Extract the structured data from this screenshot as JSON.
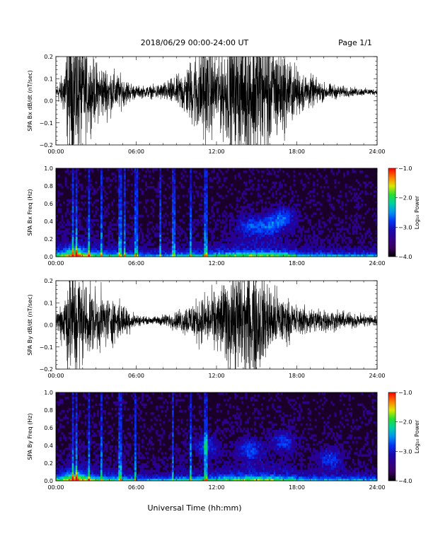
{
  "header": {
    "title": "2018/06/29  00:00-24:00 UT",
    "page": "Page 1/1"
  },
  "footer": {
    "xlabel": "Universal Time (hh:mm)"
  },
  "chart_data": [
    {
      "type": "line",
      "ylabel": "SPA Bx dB/dt (nT/sec)",
      "xlim": [
        0,
        24
      ],
      "ylim": [
        -0.2,
        0.2
      ],
      "yticks": [
        "0.2",
        "0.1",
        "0.0",
        "−0.1",
        "−0.2"
      ],
      "xticks": [
        "00:00",
        "06:00",
        "12:00",
        "18:00",
        "24:00"
      ],
      "baseline": 0.04,
      "activity": [
        {
          "t": 0.0,
          "amp": 0.02
        },
        {
          "t": 0.5,
          "amp": 0.06
        },
        {
          "t": 1.0,
          "amp": 0.22
        },
        {
          "t": 1.5,
          "amp": 0.25
        },
        {
          "t": 2.0,
          "amp": 0.18
        },
        {
          "t": 2.5,
          "amp": 0.12
        },
        {
          "t": 3.0,
          "amp": 0.1
        },
        {
          "t": 4.0,
          "amp": 0.08
        },
        {
          "t": 5.0,
          "amp": 0.05
        },
        {
          "t": 6.0,
          "amp": 0.02
        },
        {
          "t": 7.0,
          "amp": 0.02
        },
        {
          "t": 8.0,
          "amp": 0.03
        },
        {
          "t": 9.0,
          "amp": 0.05
        },
        {
          "t": 10.0,
          "amp": 0.1
        },
        {
          "t": 11.0,
          "amp": 0.18
        },
        {
          "t": 12.0,
          "amp": 0.12
        },
        {
          "t": 13.0,
          "amp": 0.18
        },
        {
          "t": 14.0,
          "amp": 0.22
        },
        {
          "t": 15.0,
          "amp": 0.25
        },
        {
          "t": 16.0,
          "amp": 0.2
        },
        {
          "t": 17.0,
          "amp": 0.14
        },
        {
          "t": 18.0,
          "amp": 0.08
        },
        {
          "t": 20.0,
          "amp": 0.03
        },
        {
          "t": 22.0,
          "amp": 0.015
        },
        {
          "t": 24.0,
          "amp": 0.01
        }
      ]
    },
    {
      "type": "heatmap",
      "ylabel": "SPA Bx Freq (Hz)",
      "xlim": [
        0,
        24
      ],
      "ylim": [
        0.0,
        1.0
      ],
      "yticks": [
        "1.0",
        "0.8",
        "0.6",
        "0.4",
        "0.2",
        "0.0"
      ],
      "xticks": [
        "00:00",
        "06:00",
        "12:00",
        "18:00",
        "24:00"
      ],
      "colorbar": {
        "label": "Log₁₀ Power",
        "range": [
          -4.0,
          -1.0
        ],
        "ticks": [
          "−1.0",
          "−2.0",
          "−3.0",
          "−4.0"
        ]
      },
      "spikes": [
        1.3,
        1.5,
        2.5,
        3.4,
        4.8,
        5.1,
        6.0,
        7.8,
        8.8,
        10.1,
        11.2
      ],
      "hotspots": [
        [
          1.5,
          0.02
        ],
        [
          14.5,
          0.35
        ],
        [
          16.0,
          0.35
        ],
        [
          17.0,
          0.45
        ]
      ]
    },
    {
      "type": "line",
      "ylabel": "SPA By dB/dt (nT/sec)",
      "xlim": [
        0,
        24
      ],
      "ylim": [
        -0.2,
        0.2
      ],
      "yticks": [
        "0.2",
        "0.1",
        "0.0",
        "−0.1",
        "−0.2"
      ],
      "xticks": [
        "00:00",
        "06:00",
        "12:00",
        "18:00",
        "24:00"
      ],
      "baseline": 0.02,
      "activity": [
        {
          "t": 0.0,
          "amp": 0.03
        },
        {
          "t": 0.5,
          "amp": 0.08
        },
        {
          "t": 1.0,
          "amp": 0.2
        },
        {
          "t": 1.5,
          "amp": 0.22
        },
        {
          "t": 2.0,
          "amp": 0.14
        },
        {
          "t": 3.0,
          "amp": 0.1
        },
        {
          "t": 4.0,
          "amp": 0.08
        },
        {
          "t": 5.0,
          "amp": 0.06
        },
        {
          "t": 6.0,
          "amp": 0.02
        },
        {
          "t": 7.0,
          "amp": 0.01
        },
        {
          "t": 8.0,
          "amp": 0.02
        },
        {
          "t": 9.0,
          "amp": 0.03
        },
        {
          "t": 10.0,
          "amp": 0.06
        },
        {
          "t": 11.0,
          "amp": 0.08
        },
        {
          "t": 12.0,
          "amp": 0.1
        },
        {
          "t": 13.0,
          "amp": 0.16
        },
        {
          "t": 14.0,
          "amp": 0.2
        },
        {
          "t": 15.0,
          "amp": 0.2
        },
        {
          "t": 16.0,
          "amp": 0.12
        },
        {
          "t": 17.0,
          "amp": 0.08
        },
        {
          "t": 18.0,
          "amp": 0.05
        },
        {
          "t": 20.0,
          "amp": 0.04
        },
        {
          "t": 22.0,
          "amp": 0.025
        },
        {
          "t": 24.0,
          "amp": 0.02
        }
      ]
    },
    {
      "type": "heatmap",
      "ylabel": "SPA By Freq (Hz)",
      "xlim": [
        0,
        24
      ],
      "ylim": [
        0.0,
        1.0
      ],
      "yticks": [
        "1.0",
        "0.8",
        "0.6",
        "0.4",
        "0.2",
        "0.0"
      ],
      "xticks": [
        "00:00",
        "06:00",
        "12:00",
        "18:00",
        "24:00"
      ],
      "colorbar": {
        "label": "Log₁₀ Power",
        "range": [
          -4.0,
          -1.0
        ],
        "ticks": [
          "−1.0",
          "−2.0",
          "−3.0",
          "−4.0"
        ]
      },
      "spikes": [
        1.3,
        1.5,
        2.5,
        3.4,
        4.8,
        5.9,
        8.7,
        10.1,
        11.2
      ],
      "hotspots": [
        [
          1.5,
          0.02
        ],
        [
          11.2,
          0.4
        ],
        [
          14.5,
          0.35
        ],
        [
          17.0,
          0.45
        ],
        [
          20.5,
          0.25
        ]
      ]
    }
  ]
}
